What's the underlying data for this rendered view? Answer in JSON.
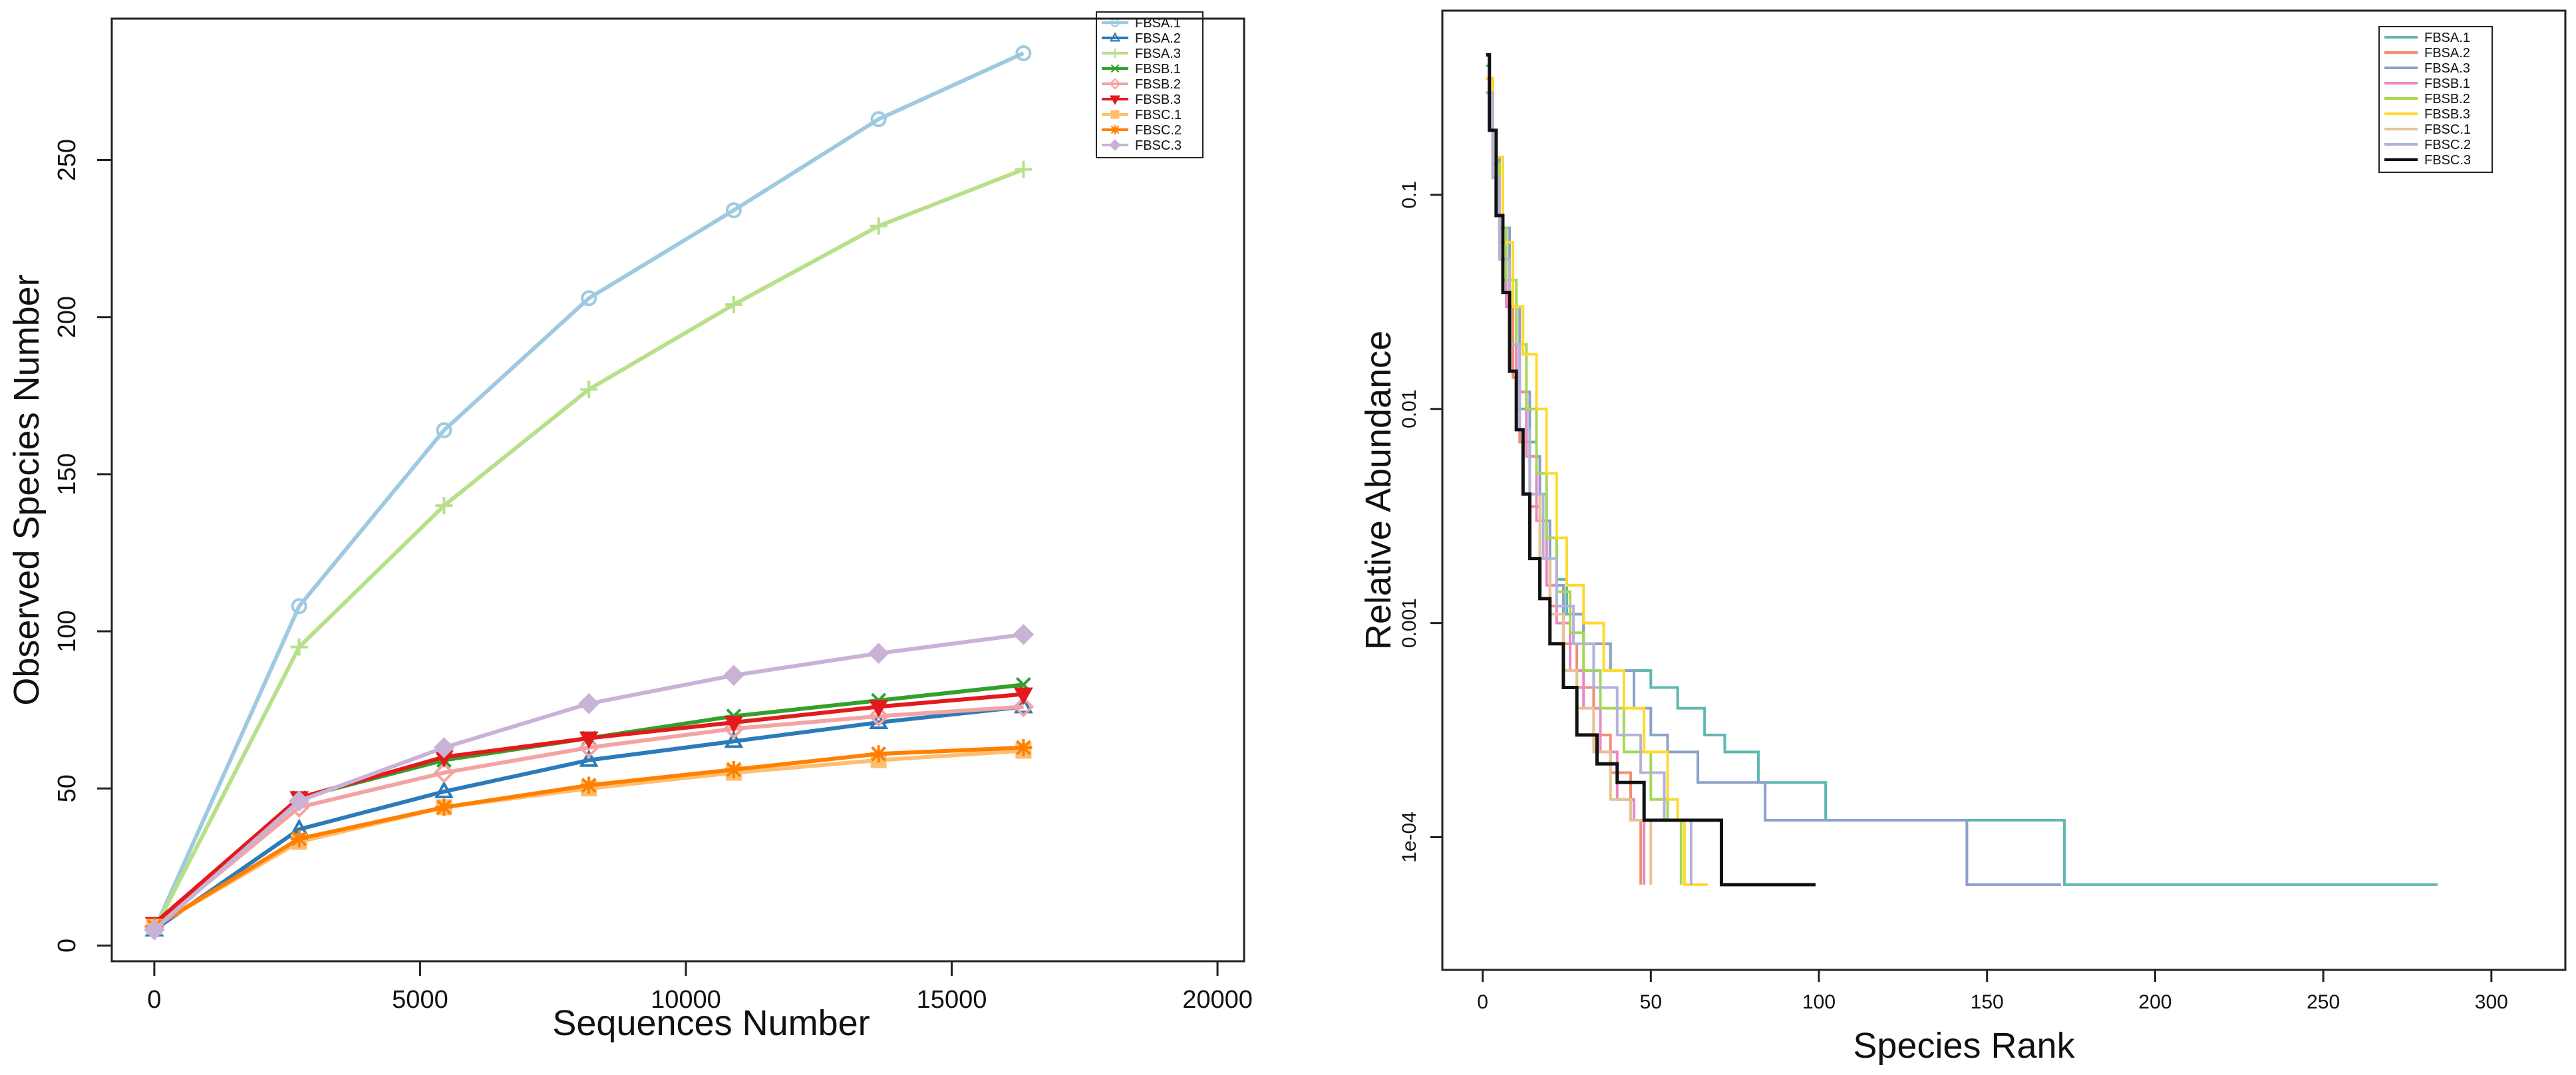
{
  "charts": [
    {
      "type": "line",
      "title": "",
      "xlabel": "Sequences Number",
      "ylabel": "Observed Species Number",
      "xlim": [
        -800,
        20500
      ],
      "ylim": [
        -5,
        295
      ],
      "xticks": [
        0,
        5000,
        10000,
        15000,
        20000
      ],
      "xtick_labels": [
        "0",
        "5000",
        "10000",
        "15000",
        "20000"
      ],
      "yticks": [
        0,
        50,
        100,
        150,
        200,
        250
      ],
      "ytick_labels": [
        "0",
        "50",
        "100",
        "150",
        "200",
        "250"
      ],
      "grid": false,
      "legend": "top-right",
      "x": [
        1,
        2725,
        5450,
        8175,
        10900,
        13625,
        16350
      ],
      "series": [
        {
          "name": "FBSA.1",
          "color": "#9ecae1",
          "marker": "circle",
          "values": [
            5,
            108,
            164,
            206,
            234,
            263,
            284
          ]
        },
        {
          "name": "FBSA.2",
          "color": "#2b7bba",
          "marker": "triangle",
          "values": [
            5,
            37,
            49,
            59,
            65,
            71,
            76
          ]
        },
        {
          "name": "FBSA.3",
          "color": "#b8df8a",
          "marker": "plus",
          "values": [
            5,
            95,
            140,
            177,
            204,
            229,
            247
          ]
        },
        {
          "name": "FBSB.1",
          "color": "#33a02c",
          "marker": "x",
          "values": [
            6,
            47,
            59,
            66,
            73,
            78,
            83
          ]
        },
        {
          "name": "FBSB.2",
          "color": "#f4a3a3",
          "marker": "diamond-open",
          "values": [
            6,
            44,
            55,
            63,
            69,
            73,
            76
          ]
        },
        {
          "name": "FBSB.3",
          "color": "#e31a1c",
          "marker": "triangle-down",
          "values": [
            7,
            47,
            60,
            66,
            71,
            76,
            80
          ]
        },
        {
          "name": "FBSC.1",
          "color": "#fdbf6f",
          "marker": "square",
          "values": [
            6,
            33,
            44,
            50,
            55,
            59,
            62
          ]
        },
        {
          "name": "FBSC.2",
          "color": "#ff7f00",
          "marker": "star",
          "values": [
            6,
            34,
            44,
            51,
            56,
            61,
            63
          ]
        },
        {
          "name": "FBSC.3",
          "color": "#cab2d6",
          "marker": "diamond",
          "values": [
            5,
            46,
            63,
            77,
            86,
            93,
            99
          ]
        }
      ]
    },
    {
      "type": "line",
      "title": "",
      "xlabel": "Species Rank",
      "ylabel": "Relative Abundance",
      "xscale": "linear",
      "yscale": "log10",
      "xlim": [
        -12,
        322
      ],
      "ylim_log10": [
        -4.62,
        -0.14
      ],
      "xticks": [
        0,
        50,
        100,
        150,
        200,
        250,
        300
      ],
      "xtick_labels": [
        "0",
        "50",
        "100",
        "150",
        "200",
        "250",
        "300"
      ],
      "yticks": [
        0.1,
        0.01,
        0.001,
        0.0001
      ],
      "ytick_labels": [
        "0.1",
        "0.01",
        "0.001",
        "1e-04"
      ],
      "grid": false,
      "legend": "top-right",
      "series": [
        {
          "name": "FBSA.1",
          "color": "#5fb8b0",
          "richness": 284,
          "points": [
            [
              1,
              0.4
            ],
            [
              2,
              0.2
            ],
            [
              4,
              0.08
            ],
            [
              6,
              0.04
            ],
            [
              8,
              0.02
            ],
            [
              10,
              0.01
            ],
            [
              13,
              0.007
            ],
            [
              16,
              0.004
            ],
            [
              19,
              0.0025
            ],
            [
              22,
              0.0016
            ],
            [
              25,
              0.0011
            ],
            [
              30,
              0.0008
            ],
            [
              38,
              0.0006
            ],
            [
              50,
              0.0005
            ],
            [
              58,
              0.0004
            ],
            [
              66,
              0.0003
            ],
            [
              72,
              0.00025
            ],
            [
              82,
              0.00018
            ],
            [
              102,
              0.00012
            ],
            [
              120,
              0.00012
            ],
            [
              140,
              0.00012
            ],
            [
              172,
              0.00012
            ],
            [
              173,
              6e-05
            ],
            [
              200,
              6e-05
            ],
            [
              284,
              6e-05
            ]
          ]
        },
        {
          "name": "FBSA.2",
          "color": "#f28e72",
          "richness": 47,
          "points": [
            [
              1,
              0.35
            ],
            [
              3,
              0.15
            ],
            [
              5,
              0.06
            ],
            [
              7,
              0.03
            ],
            [
              9,
              0.014
            ],
            [
              11,
              0.007
            ],
            [
              14,
              0.0035
            ],
            [
              17,
              0.002
            ],
            [
              20,
              0.0012
            ],
            [
              24,
              0.0008
            ],
            [
              28,
              0.0005
            ],
            [
              33,
              0.0003
            ],
            [
              38,
              0.0002
            ],
            [
              44,
              0.00012
            ],
            [
              47,
              6e-05
            ]
          ]
        },
        {
          "name": "FBSA.3",
          "color": "#8da0cb",
          "richness": 172,
          "points": [
            [
              1,
              0.3
            ],
            [
              3,
              0.15
            ],
            [
              5,
              0.07
            ],
            [
              8,
              0.03
            ],
            [
              11,
              0.012
            ],
            [
              14,
              0.006
            ],
            [
              17,
              0.003
            ],
            [
              20,
              0.0015
            ],
            [
              24,
              0.0011
            ],
            [
              30,
              0.0008
            ],
            [
              38,
              0.0006
            ],
            [
              45,
              0.0004
            ],
            [
              50,
              0.0003
            ],
            [
              55,
              0.00025
            ],
            [
              64,
              0.00018
            ],
            [
              84,
              0.00012
            ],
            [
              100,
              0.00012
            ],
            [
              143,
              0.00012
            ],
            [
              144,
              6e-05
            ],
            [
              172,
              6e-05
            ]
          ]
        },
        {
          "name": "FBSB.1",
          "color": "#e78ac3",
          "richness": 48,
          "points": [
            [
              1,
              0.3
            ],
            [
              3,
              0.12
            ],
            [
              5,
              0.06
            ],
            [
              7,
              0.03
            ],
            [
              10,
              0.012
            ],
            [
              13,
              0.006
            ],
            [
              16,
              0.003
            ],
            [
              19,
              0.0015
            ],
            [
              22,
              0.001
            ],
            [
              26,
              0.0006
            ],
            [
              30,
              0.0004
            ],
            [
              35,
              0.00025
            ],
            [
              40,
              0.00015
            ],
            [
              45,
              0.00012
            ],
            [
              48,
              6e-05
            ]
          ]
        },
        {
          "name": "FBSB.2",
          "color": "#a6d854",
          "richness": 59,
          "points": [
            [
              1,
              0.3
            ],
            [
              3,
              0.14
            ],
            [
              5,
              0.07
            ],
            [
              7,
              0.04
            ],
            [
              10,
              0.02
            ],
            [
              13,
              0.01
            ],
            [
              16,
              0.005
            ],
            [
              19,
              0.0025
            ],
            [
              22,
              0.0014
            ],
            [
              26,
              0.0009
            ],
            [
              30,
              0.0006
            ],
            [
              35,
              0.0004
            ],
            [
              42,
              0.00025
            ],
            [
              50,
              0.00015
            ],
            [
              55,
              0.00012
            ],
            [
              59,
              6e-05
            ]
          ]
        },
        {
          "name": "FBSB.3",
          "color": "#ffd92f",
          "richness": 67,
          "points": [
            [
              1,
              0.35
            ],
            [
              3,
              0.15
            ],
            [
              6,
              0.06
            ],
            [
              9,
              0.03
            ],
            [
              12,
              0.018
            ],
            [
              16,
              0.01
            ],
            [
              19,
              0.005
            ],
            [
              22,
              0.0025
            ],
            [
              25,
              0.0015
            ],
            [
              30,
              0.001
            ],
            [
              36,
              0.0006
            ],
            [
              42,
              0.0004
            ],
            [
              48,
              0.00025
            ],
            [
              55,
              0.00015
            ],
            [
              58,
              0.00012
            ],
            [
              60,
              6e-05
            ],
            [
              67,
              6e-05
            ]
          ]
        },
        {
          "name": "FBSC.1",
          "color": "#e5c494",
          "richness": 50,
          "points": [
            [
              1,
              0.3
            ],
            [
              3,
              0.12
            ],
            [
              5,
              0.05
            ],
            [
              8,
              0.02
            ],
            [
              11,
              0.008
            ],
            [
              14,
              0.004
            ],
            [
              17,
              0.002
            ],
            [
              20,
              0.0011
            ],
            [
              24,
              0.0006
            ],
            [
              28,
              0.0004
            ],
            [
              33,
              0.00025
            ],
            [
              38,
              0.00015
            ],
            [
              44,
              0.00012
            ],
            [
              50,
              6e-05
            ]
          ]
        },
        {
          "name": "FBSC.2",
          "color": "#b3b3d9",
          "richness": 62,
          "points": [
            [
              1,
              0.3
            ],
            [
              3,
              0.12
            ],
            [
              5,
              0.05
            ],
            [
              8,
              0.02
            ],
            [
              11,
              0.008
            ],
            [
              14,
              0.004
            ],
            [
              18,
              0.002
            ],
            [
              22,
              0.0012
            ],
            [
              27,
              0.0008
            ],
            [
              33,
              0.0005
            ],
            [
              40,
              0.0003
            ],
            [
              47,
              0.0002
            ],
            [
              54,
              0.00012
            ],
            [
              62,
              6e-05
            ]
          ]
        },
        {
          "name": "FBSC.3",
          "color": "#111111",
          "richness": 99,
          "points": [
            [
              1,
              0.45
            ],
            [
              2,
              0.2
            ],
            [
              4,
              0.08
            ],
            [
              6,
              0.035
            ],
            [
              8,
              0.015
            ],
            [
              10,
              0.008
            ],
            [
              12,
              0.004
            ],
            [
              14,
              0.002
            ],
            [
              17,
              0.0013
            ],
            [
              20,
              0.0008
            ],
            [
              24,
              0.0005
            ],
            [
              28,
              0.0003
            ],
            [
              34,
              0.00022
            ],
            [
              40,
              0.00018
            ],
            [
              48,
              0.00012
            ],
            [
              70,
              0.00012
            ],
            [
              71,
              6e-05
            ],
            [
              99,
              6e-05
            ]
          ]
        }
      ]
    }
  ]
}
